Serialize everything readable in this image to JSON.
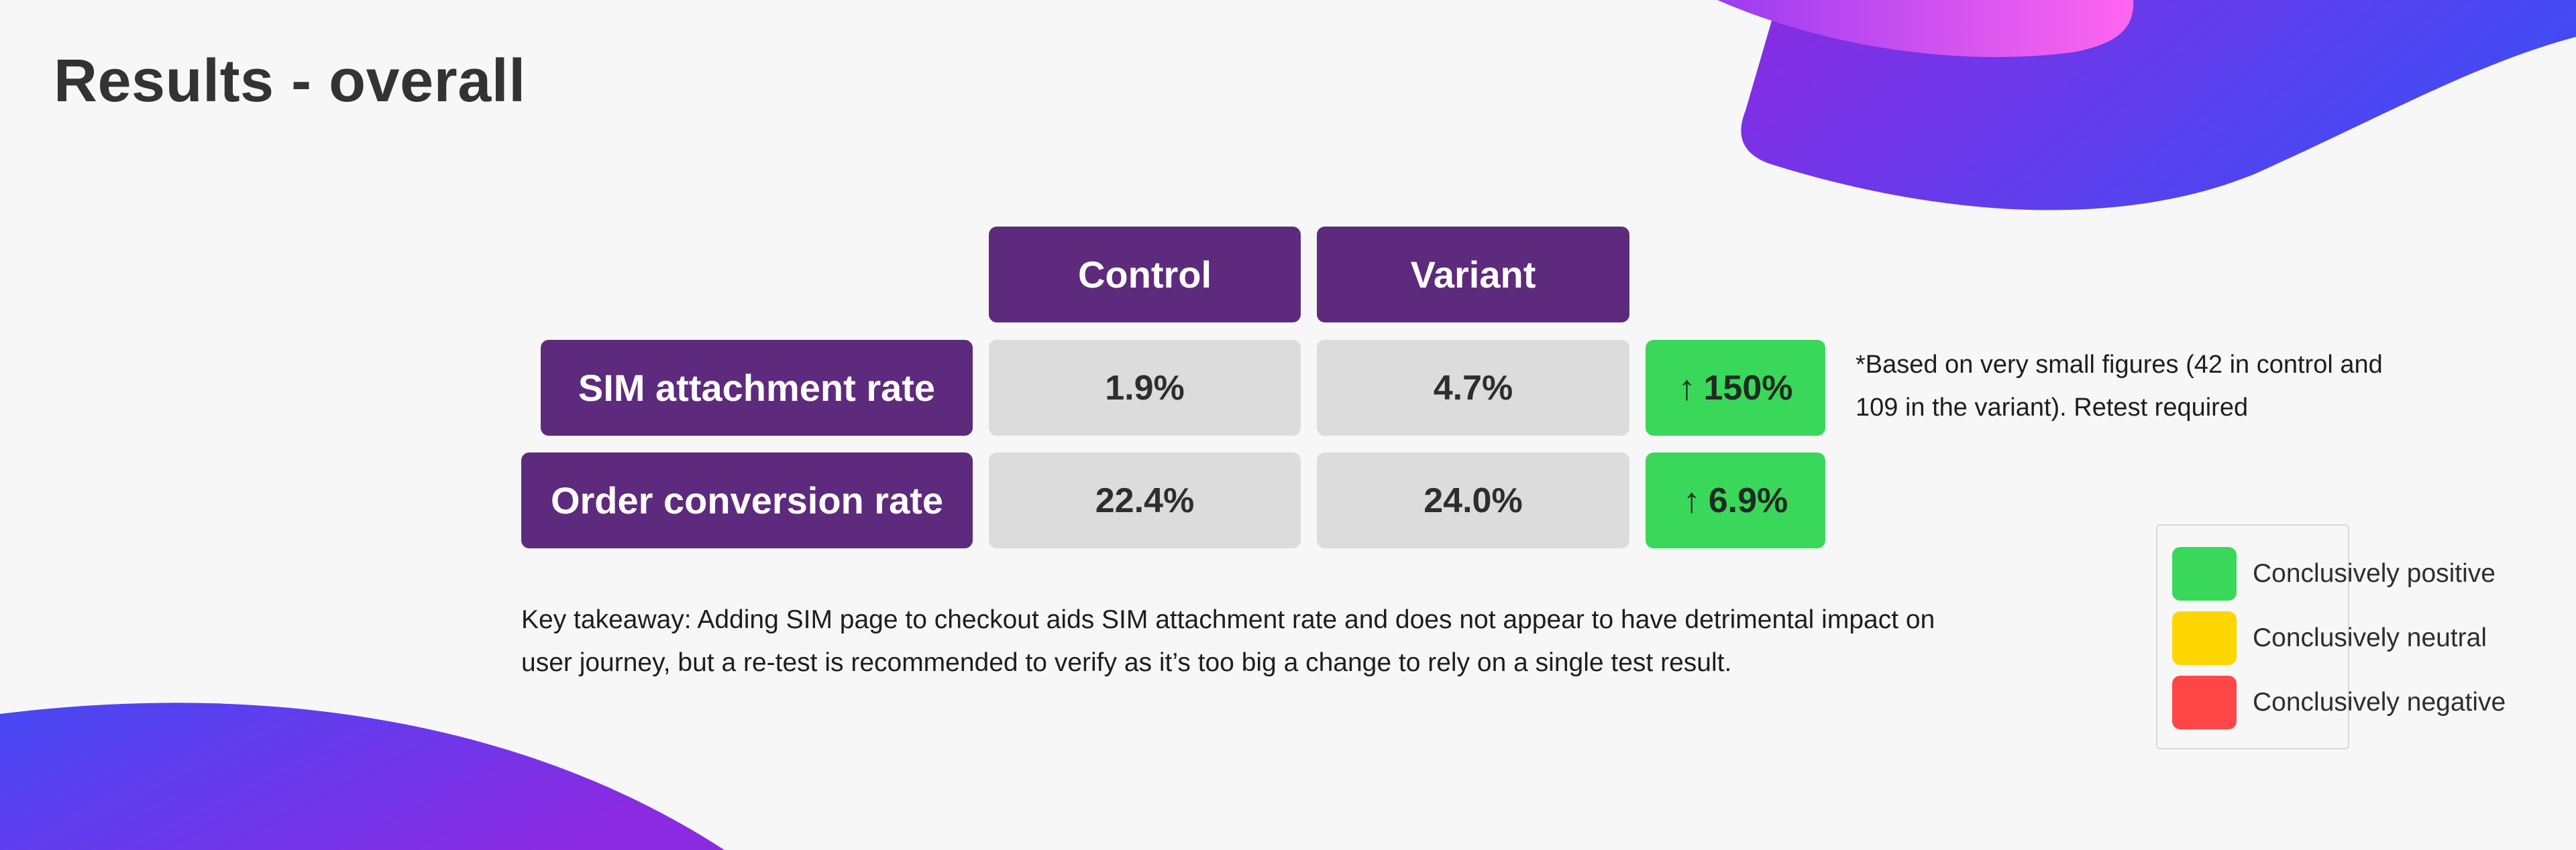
{
  "title": "Results - overall",
  "table": {
    "headers": [
      "Control",
      "Variant"
    ],
    "rows": [
      {
        "label": "SIM attachment rate",
        "control": "1.9%",
        "variant": "4.7%",
        "change": "150%",
        "direction": "up",
        "status": "Conclusively positive"
      },
      {
        "label": "Order conversion rate",
        "control": "22.4%",
        "variant": "24.0%",
        "change": "6.9%",
        "direction": "up",
        "status": "Conclusively positive"
      }
    ]
  },
  "footnote": "*Based on very small figures (42 in control and 109 in the variant). Retest required",
  "takeaway": "Key takeaway: Adding SIM page to checkout aids SIM attachment rate and does not appear to have detrimental impact on user journey, but a re-test is recommended to verify as it’s too big a change to rely on a single test result.",
  "legend": [
    {
      "label": "Conclusively positive",
      "color": "#3ad85a"
    },
    {
      "label": "Conclusively neutral",
      "color": "#ffd600"
    },
    {
      "label": "Conclusively negative",
      "color": "#ff4747"
    }
  ],
  "colors": {
    "header": "#5e2a7d",
    "cell": "#dcdcdc",
    "positive": "#3ad85a",
    "blob_start": "#8a2be2",
    "blob_end": "#4a46f5",
    "blob_pink": "#ff5cf0"
  },
  "icons": {
    "change_up": "arrow-up-icon"
  }
}
